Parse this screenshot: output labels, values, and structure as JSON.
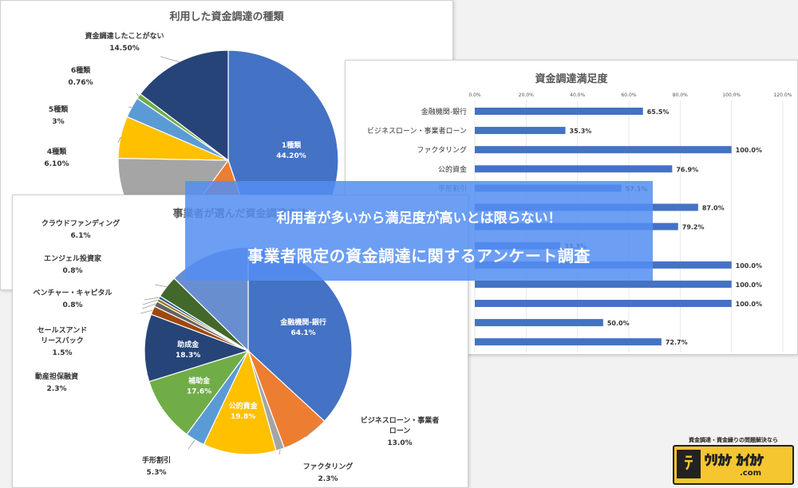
{
  "banner": {
    "line1": "利用者が多いから満足度が高いとは限らない！",
    "line2": "事業者限定の資金調達に関するアンケート調査"
  },
  "logo": {
    "tagline": "資金調達・資金繰りの問題解決なら",
    "domain": ".com"
  },
  "colors": {
    "banner": "#548ef2",
    "bar": "#4472c4",
    "blue": "#4472c4",
    "orange": "#ed7d31",
    "gray": "#a5a5a5",
    "yellow": "#ffc000",
    "lightblue": "#5b9bd5",
    "green": "#70ad47",
    "navy": "#264478",
    "brown": "#9e480e",
    "olive": "#997300",
    "darkgreen": "#43682b"
  },
  "chart_data": [
    {
      "id": "funding-types",
      "type": "pie",
      "title": "利用した資金調達の種類",
      "unit": "%",
      "slices": [
        {
          "name": "1種類",
          "value": 44.2,
          "label": "44.20%",
          "color": "#4472c4",
          "label_pos": "inside"
        },
        {
          "name": "",
          "value": 15.0,
          "color": "#ed7d31"
        },
        {
          "name": "",
          "value": 15.0,
          "color": "#a5a5a5"
        },
        {
          "name": "4種類",
          "value": 6.1,
          "label": "6.10%",
          "color": "#ffc000",
          "label_pos": "left"
        },
        {
          "name": "5種類",
          "value": 3.0,
          "label": "3%",
          "color": "#5b9bd5",
          "label_pos": "left"
        },
        {
          "name": "6種類",
          "value": 0.76,
          "label": "0.76%",
          "color": "#70ad47",
          "label_pos": "left"
        },
        {
          "name": "資金調達したことがない",
          "value": 14.5,
          "label": "14.50%",
          "color": "#264478",
          "label_pos": "top"
        }
      ]
    },
    {
      "id": "satisfaction",
      "type": "bar",
      "orientation": "horizontal",
      "title": "資金調達満足度",
      "xlim": [
        0,
        120
      ],
      "ticks": [
        "0.0%",
        "20.0%",
        "40.0%",
        "60.0%",
        "80.0%",
        "100.0%",
        "120.0%"
      ],
      "categories": [
        "金融機関-銀行",
        "ビジネスローン・事業者ローン",
        "ファクタリング",
        "公的資金",
        "手形割引",
        "",
        "",
        "",
        "",
        "",
        "",
        "",
        ""
      ],
      "values": [
        65.5,
        35.3,
        100.0,
        76.9,
        57.1,
        87.0,
        79.2,
        33.3,
        100.0,
        100.0,
        100.0,
        50.0,
        72.7
      ],
      "labels": [
        "65.5%",
        "35.3%",
        "100.0%",
        "76.9%",
        "57.1%",
        "87.0%",
        "79.2%",
        "33.3%",
        "100.0%",
        "100.0%",
        "100.0%",
        "50.0%",
        "72.7%"
      ]
    },
    {
      "id": "chosen-methods",
      "type": "pie",
      "title": "事業者が選んだ資金調達方法",
      "unit": "%",
      "slices": [
        {
          "name": "金融機関-銀行",
          "value": 64.1,
          "label": "64.1%",
          "color": "#4472c4",
          "label_pos": "inside"
        },
        {
          "name": "ビジネスローン・事業者ローン",
          "value": 13.0,
          "label": "13.0%",
          "color": "#ed7d31",
          "label_pos": "right"
        },
        {
          "name": "ファクタリング",
          "value": 2.3,
          "label": "2.3%",
          "color": "#a5a5a5",
          "label_pos": "bottom"
        },
        {
          "name": "公的資金",
          "value": 19.8,
          "label": "19.8%",
          "color": "#ffc000",
          "label_pos": "inside"
        },
        {
          "name": "手形割引",
          "value": 5.3,
          "label": "5.3%",
          "color": "#5b9bd5",
          "label_pos": "bottom"
        },
        {
          "name": "補助金",
          "value": 17.6,
          "label": "17.6%",
          "color": "#70ad47",
          "label_pos": "inside"
        },
        {
          "name": "助成金",
          "value": 18.3,
          "label": "18.3%",
          "color": "#264478",
          "label_pos": "inside"
        },
        {
          "name": "動産担保融資",
          "value": 2.3,
          "label": "2.3%",
          "color": "#9e480e",
          "label_pos": "left"
        },
        {
          "name": "セールスアンドリースバック",
          "value": 1.5,
          "label": "1.5%",
          "color": "#636363",
          "label_pos": "left"
        },
        {
          "name": "ベンチャー・キャピタル",
          "value": 0.8,
          "label": "0.8%",
          "color": "#997300",
          "label_pos": "left"
        },
        {
          "name": "エンジェル投資家",
          "value": 0.8,
          "label": "0.8%",
          "color": "#255e91",
          "label_pos": "left"
        },
        {
          "name": "クラウドファンディング",
          "value": 6.1,
          "label": "6.1%",
          "color": "#43682b",
          "label_pos": "left"
        },
        {
          "name": "",
          "value": 22.0,
          "color": "#698ed0"
        }
      ]
    }
  ]
}
